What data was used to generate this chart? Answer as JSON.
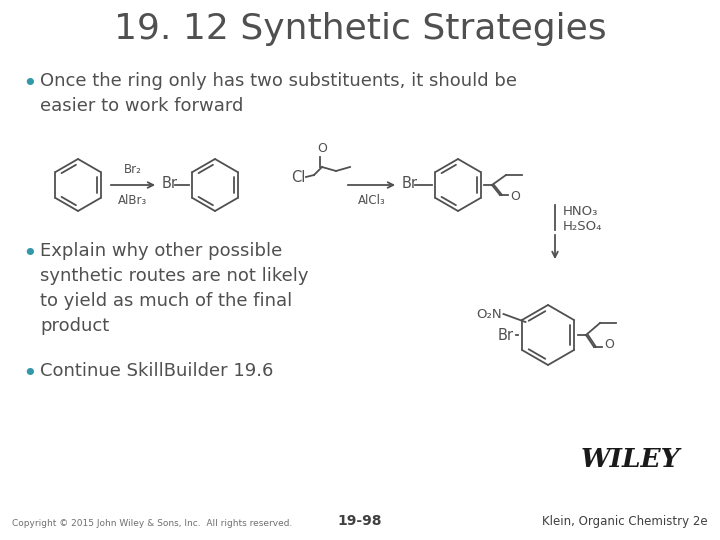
{
  "title": "19. 12 Synthetic Strategies",
  "title_fontsize": 26,
  "title_color": "#505050",
  "bg_color": "#ffffff",
  "bullet_color": "#3399AA",
  "text_color": "#505050",
  "bullet1": "Once the ring only has two substituents, it should be\neasier to work forward",
  "bullet2a": "Explain why other possible\nsynthetic routes are not likely\nto yield as much of the final\nproduct",
  "bullet2b": "Continue SkillBuilder 19.6",
  "footer_left": "Copyright © 2015 John Wiley & Sons, Inc.  All rights reserved.",
  "footer_center": "19-98",
  "footer_right": "Klein, Organic Chemistry 2e",
  "wiley_text": "WILEY",
  "reagent1_top": "Br₂",
  "reagent1_bot": "AlBr₃",
  "reagent2_bot": "AlCl₃",
  "label_br1": "Br",
  "label_br2": "Br",
  "label_cl": "Cl",
  "label_hno3": "HNO₃",
  "label_h2so4": "H₂SO₄",
  "label_o2n": "O₂N",
  "label_br3": "Br",
  "line_color": "#505050",
  "lw": 1.3
}
